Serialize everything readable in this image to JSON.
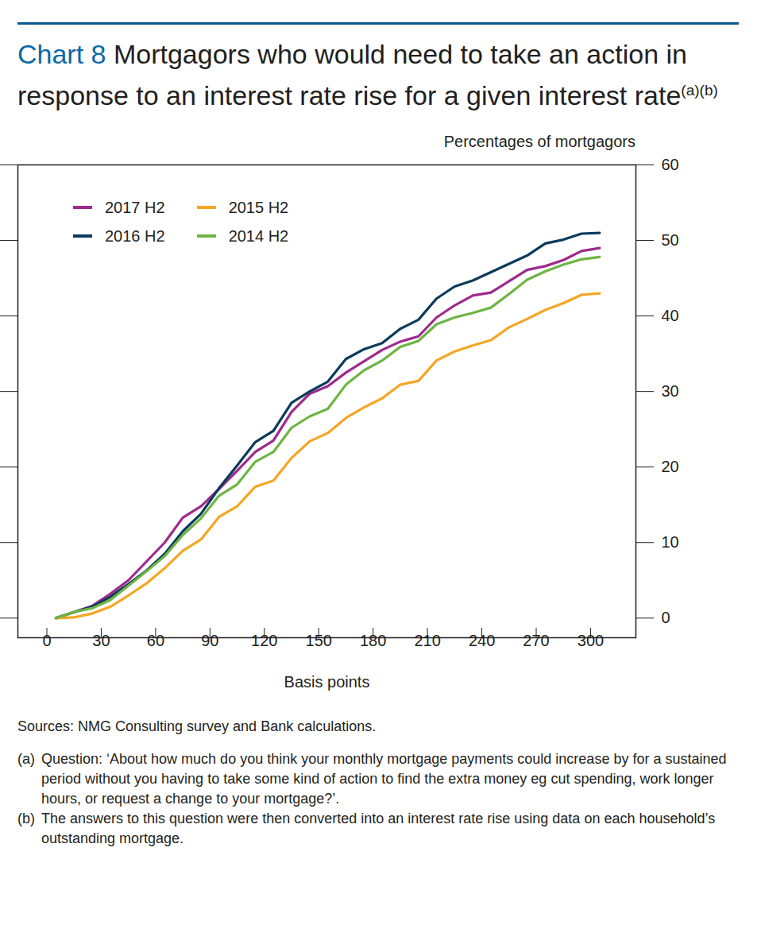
{
  "chart_data": {
    "type": "line",
    "chart_label": "Chart 8",
    "title": "Mortgagors who would need to take an action in response to an interest rate rise for a given interest rate",
    "title_notes": "(a)(b)",
    "x_label": "Basis points",
    "y_label": "Percentages of mortgagors",
    "x": [
      5,
      15,
      25,
      35,
      45,
      55,
      65,
      75,
      85,
      95,
      105,
      115,
      125,
      135,
      145,
      155,
      165,
      175,
      185,
      195,
      205,
      215,
      225,
      235,
      245,
      255,
      265,
      275,
      285,
      295,
      305
    ],
    "series": [
      {
        "name": "2017 H2",
        "color": "#9e2a8c",
        "values": [
          0,
          0.8,
          1.6,
          3.2,
          5,
          7.5,
          10,
          13.3,
          14.8,
          17.1,
          19.5,
          22,
          23.5,
          27.3,
          29.7,
          30.7,
          32.5,
          34,
          35.5,
          36.6,
          37.3,
          39.8,
          41.4,
          42.7,
          43.1,
          44.6,
          46.1,
          46.6,
          47.4,
          48.6,
          49
        ]
      },
      {
        "name": "2016 H2",
        "color": "#0b3b5c",
        "values": [
          0,
          0.8,
          1.5,
          2.8,
          4.5,
          6.3,
          8.5,
          11.5,
          13.8,
          17.2,
          20.2,
          23.3,
          24.8,
          28.5,
          30,
          31.3,
          34.3,
          35.6,
          36.4,
          38.3,
          39.5,
          42.3,
          43.9,
          44.7,
          45.8,
          46.9,
          48,
          49.6,
          50.1,
          50.9,
          51
        ]
      },
      {
        "name": "2015 H2",
        "color": "#f5a623",
        "values": [
          0,
          0.1,
          0.6,
          1.5,
          3,
          4.6,
          6.6,
          8.9,
          10.4,
          13.4,
          14.8,
          17.4,
          18.2,
          21.2,
          23.4,
          24.5,
          26.5,
          27.9,
          29.1,
          30.9,
          31.4,
          34.1,
          35.3,
          36.1,
          36.8,
          38.5,
          39.6,
          40.8,
          41.7,
          42.8,
          43
        ]
      },
      {
        "name": "2014 H2",
        "color": "#6db543",
        "values": [
          0,
          0.8,
          1.3,
          2.4,
          4.3,
          6.2,
          8.2,
          11,
          13.2,
          16.2,
          17.7,
          20.7,
          22,
          25.2,
          26.7,
          27.7,
          30.9,
          32.8,
          34.1,
          35.9,
          36.7,
          38.9,
          39.8,
          40.4,
          41.1,
          42.9,
          44.8,
          45.9,
          46.8,
          47.5,
          47.8
        ]
      }
    ],
    "xlim": [
      -16,
      325
    ],
    "xticks": [
      0,
      30,
      60,
      90,
      120,
      150,
      180,
      210,
      240,
      270,
      300
    ],
    "ylim": [
      -2.6,
      60
    ],
    "yticks": [
      0,
      10,
      20,
      30,
      40,
      50,
      60
    ],
    "legend": "top-left",
    "grid": false,
    "sources": "Sources: NMG Consulting survey and Bank calculations.",
    "notes": [
      {
        "marker": "(a)",
        "text": "Question: ‘About how much do you think your monthly mortgage payments could increase by for a sustained period without you having to take some kind of action to find the extra money eg cut spending, work longer hours, or request a change to your mortgage?’."
      },
      {
        "marker": "(b)",
        "text": "The answers to this question were then converted into an interest rate rise using data on each household’s outstanding mortgage."
      }
    ]
  }
}
